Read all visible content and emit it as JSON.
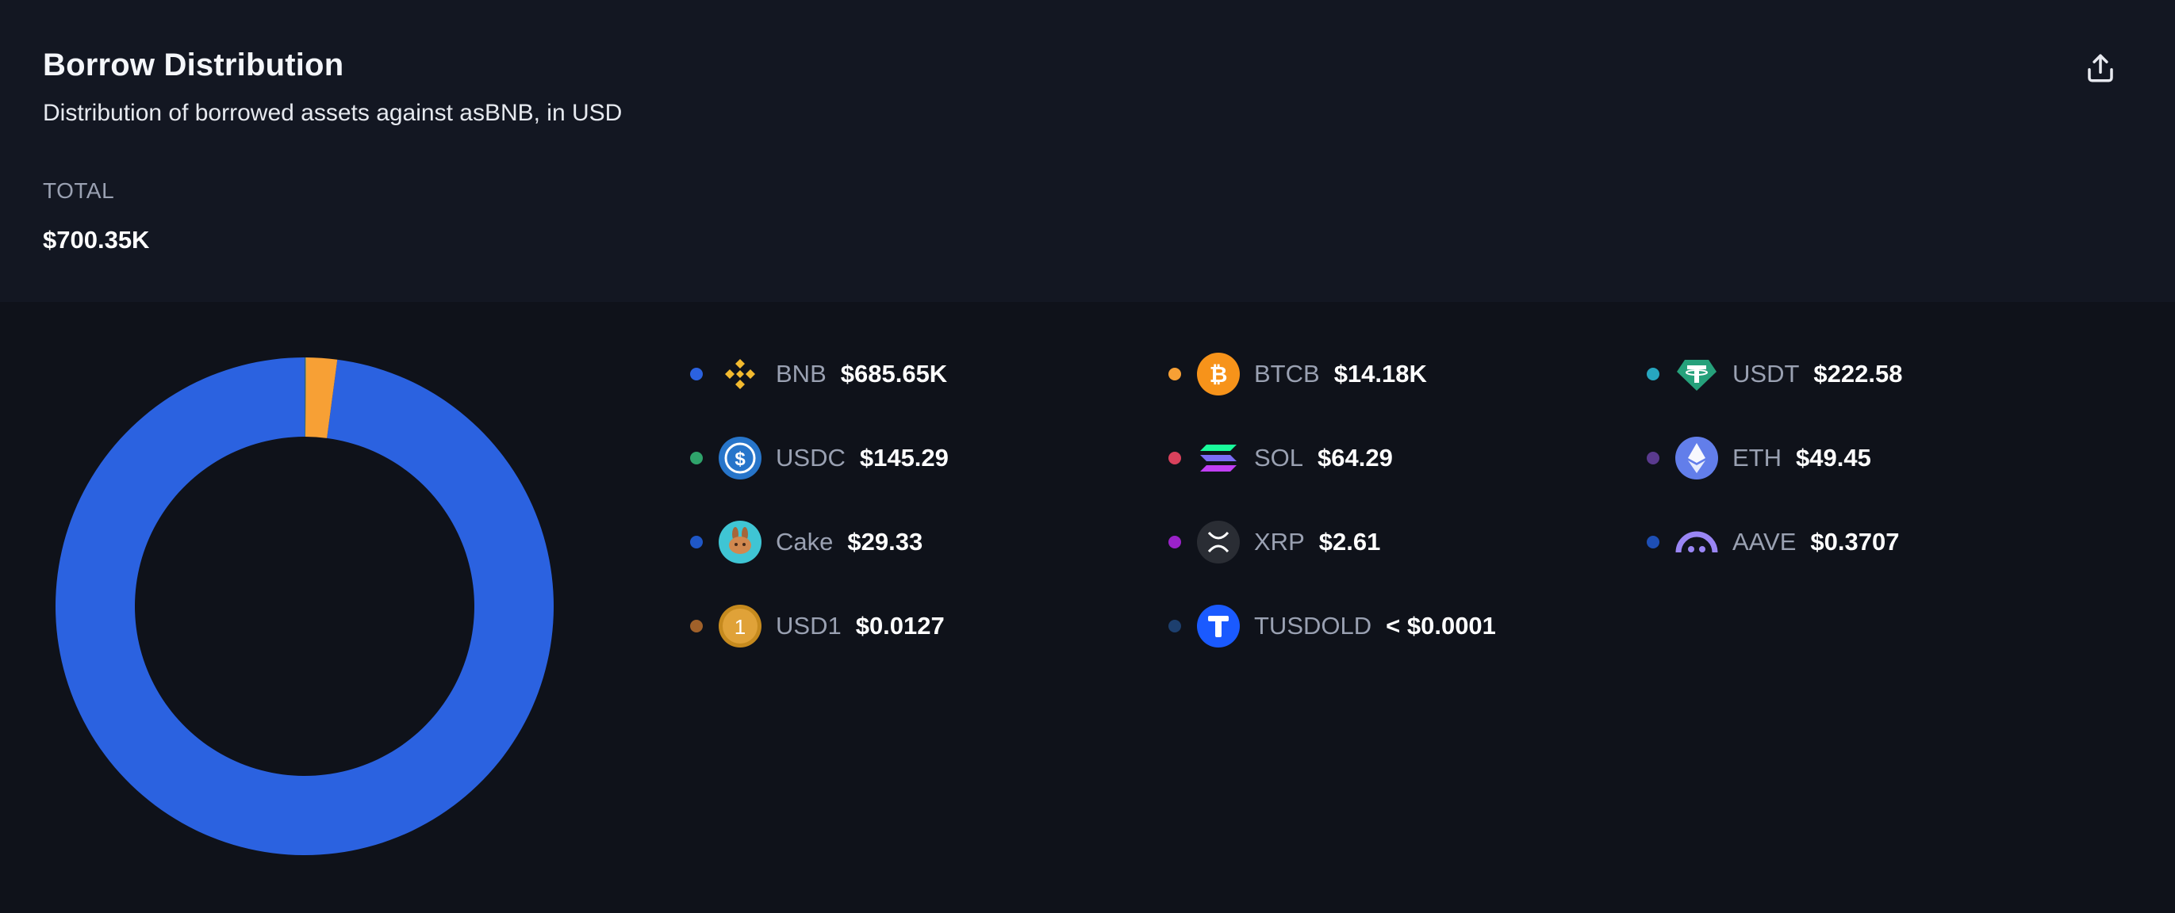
{
  "header": {
    "title": "Borrow Distribution",
    "subtitle": "Distribution of borrowed assets against asBNB, in USD",
    "total_label": "TOTAL",
    "total_value": "$700.35K",
    "export_icon": "share-upload-icon"
  },
  "colors": {
    "background": "#0f121a",
    "header_background": "#131722",
    "muted_text": "#9aa1b2"
  },
  "legend": [
    {
      "symbol": "BNB",
      "value": "$685.65K",
      "dot_color": "#2b62e0",
      "icon": "bnb-icon"
    },
    {
      "symbol": "BTCB",
      "value": "$14.18K",
      "dot_color": "#f7a035",
      "icon": "bitcoin-icon"
    },
    {
      "symbol": "USDT",
      "value": "$222.58",
      "dot_color": "#27a6bf",
      "icon": "tether-icon"
    },
    {
      "symbol": "USDC",
      "value": "$145.29",
      "dot_color": "#2fa36b",
      "icon": "usdc-icon"
    },
    {
      "symbol": "SOL",
      "value": "$64.29",
      "dot_color": "#d9415c",
      "icon": "solana-icon"
    },
    {
      "symbol": "ETH",
      "value": "$49.45",
      "dot_color": "#5a3a8e",
      "icon": "ethereum-icon"
    },
    {
      "symbol": "Cake",
      "value": "$29.33",
      "dot_color": "#1f57c7",
      "icon": "pancake-icon"
    },
    {
      "symbol": "XRP",
      "value": "$2.61",
      "dot_color": "#9b22c9",
      "icon": "xrp-icon"
    },
    {
      "symbol": "AAVE",
      "value": "$0.3707",
      "dot_color": "#1e4fb5",
      "icon": "aave-icon"
    },
    {
      "symbol": "USD1",
      "value": "$0.0127",
      "dot_color": "#a0612a",
      "icon": "usd1-icon"
    },
    {
      "symbol": "TUSDOLD",
      "value": "< $0.0001",
      "dot_color": "#1d3f6e",
      "icon": "trueusd-icon"
    }
  ],
  "chart_data": {
    "type": "pie",
    "variant": "donut",
    "unit": "USD",
    "categories": [
      "BNB",
      "BTCB",
      "USDT",
      "USDC",
      "SOL",
      "ETH",
      "Cake",
      "XRP",
      "AAVE",
      "USD1",
      "TUSDOLD"
    ],
    "values": [
      685650,
      14180,
      222.58,
      145.29,
      64.29,
      49.45,
      29.33,
      2.61,
      0.3707,
      0.0127,
      0.0001
    ],
    "colors": [
      "#2b62e0",
      "#f7a035",
      "#27a6bf",
      "#2fa36b",
      "#d9415c",
      "#5a3a8e",
      "#1f57c7",
      "#9b22c9",
      "#1e4fb5",
      "#a0612a",
      "#1d3f6e"
    ],
    "legend_placement": "right"
  }
}
